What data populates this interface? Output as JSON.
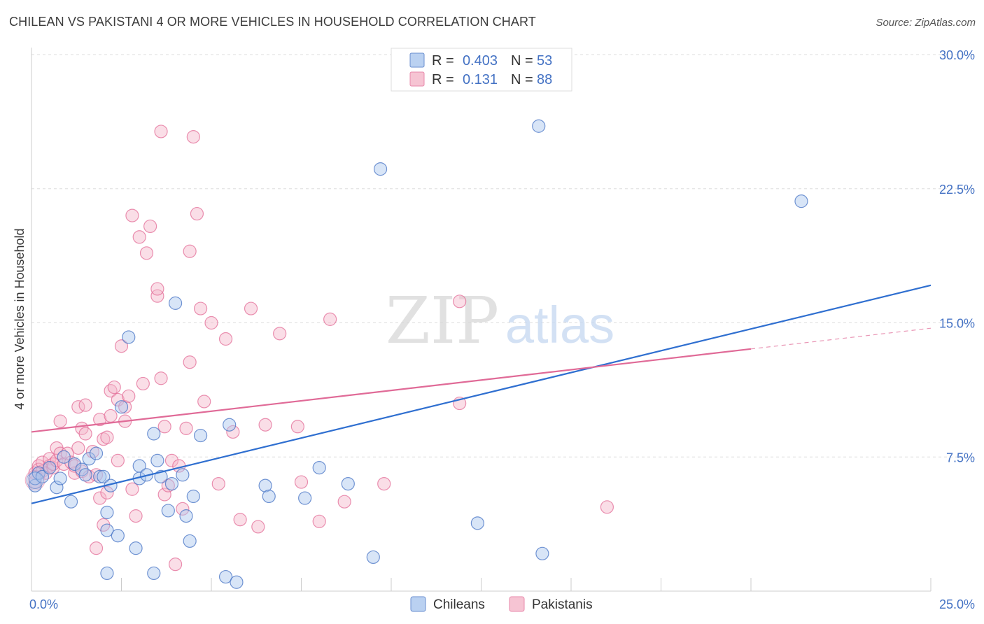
{
  "title": "CHILEAN VS PAKISTANI 4 OR MORE VEHICLES IN HOUSEHOLD CORRELATION CHART",
  "source": "Source: ZipAtlas.com",
  "watermark": {
    "zip": "ZIP",
    "atlas": "atlas"
  },
  "colors": {
    "blue": "#4472c4",
    "blue_fill": "#a9c6ee",
    "blue_line": "#2f6fd0",
    "pink": "#e36c97",
    "pink_fill": "#f4b6c9",
    "pink_line": "#e06a97",
    "grid": "#dddddd",
    "axis_text": "#4472c4"
  },
  "legend": {
    "rows": [
      {
        "r_label": "R =",
        "r_value": "0.403",
        "n_label": "N =",
        "n_value": "53",
        "color": "blue"
      },
      {
        "r_label": "R =",
        "r_value": "0.131",
        "n_label": "N =",
        "n_value": "88",
        "color": "pink"
      }
    ]
  },
  "bottom_legend": [
    {
      "label": "Chileans",
      "color": "blue"
    },
    {
      "label": "Pakistanis",
      "color": "pink"
    }
  ],
  "chart_data": {
    "type": "scatter",
    "title": "CHILEAN VS PAKISTANI 4 OR MORE VEHICLES IN HOUSEHOLD CORRELATION CHART",
    "xlabel": "",
    "ylabel": "4 or more Vehicles in Household",
    "xlim": [
      0,
      25
    ],
    "ylim": [
      0,
      30
    ],
    "x_tick_labels": [
      {
        "value": 0,
        "label": "0.0%"
      },
      {
        "value": 25,
        "label": "25.0%"
      }
    ],
    "y_tick_labels": [
      {
        "value": 7.5,
        "label": "7.5%"
      },
      {
        "value": 15,
        "label": "15.0%"
      },
      {
        "value": 22.5,
        "label": "22.5%"
      },
      {
        "value": 30,
        "label": "30.0%"
      }
    ],
    "x_minor_ticks": [
      2.5,
      5,
      7.5,
      10,
      12.5,
      15,
      17.5,
      20,
      25
    ],
    "grid": true,
    "series": [
      {
        "name": "Chileans",
        "color": "blue",
        "trend": {
          "x": [
            0,
            25
          ],
          "y": [
            4.9,
            17.1
          ],
          "dashed_from": null
        },
        "points": [
          [
            0.1,
            5.9
          ],
          [
            0.1,
            6.3
          ],
          [
            0.2,
            6.6
          ],
          [
            0.3,
            6.4
          ],
          [
            0.5,
            6.9
          ],
          [
            0.7,
            5.8
          ],
          [
            0.8,
            6.3
          ],
          [
            0.9,
            7.5
          ],
          [
            1.1,
            5.0
          ],
          [
            1.2,
            7.1
          ],
          [
            1.4,
            6.8
          ],
          [
            1.5,
            6.5
          ],
          [
            1.6,
            7.4
          ],
          [
            1.8,
            7.7
          ],
          [
            1.9,
            6.4
          ],
          [
            2.0,
            6.4
          ],
          [
            2.1,
            4.4
          ],
          [
            2.1,
            3.4
          ],
          [
            2.2,
            5.9
          ],
          [
            2.4,
            3.1
          ],
          [
            2.5,
            10.3
          ],
          [
            2.7,
            14.2
          ],
          [
            2.9,
            2.4
          ],
          [
            3.0,
            6.3
          ],
          [
            3.0,
            7.0
          ],
          [
            3.2,
            6.5
          ],
          [
            3.4,
            8.8
          ],
          [
            3.5,
            7.3
          ],
          [
            3.6,
            6.4
          ],
          [
            3.8,
            4.5
          ],
          [
            3.9,
            6.0
          ],
          [
            4.2,
            6.5
          ],
          [
            4.3,
            4.2
          ],
          [
            4.4,
            2.8
          ],
          [
            4.5,
            5.3
          ],
          [
            4.7,
            8.7
          ],
          [
            5.4,
            0.8
          ],
          [
            5.5,
            9.3
          ],
          [
            5.7,
            0.5
          ],
          [
            2.1,
            1.0
          ],
          [
            3.4,
            1.0
          ],
          [
            4.0,
            16.1
          ],
          [
            6.5,
            5.9
          ],
          [
            6.6,
            5.3
          ],
          [
            7.6,
            5.2
          ],
          [
            8.0,
            6.9
          ],
          [
            8.8,
            6.0
          ],
          [
            9.5,
            1.9
          ],
          [
            9.7,
            23.6
          ],
          [
            12.4,
            3.8
          ],
          [
            14.1,
            26.0
          ],
          [
            14.2,
            2.1
          ],
          [
            21.4,
            21.8
          ]
        ]
      },
      {
        "name": "Pakistanis",
        "color": "pink",
        "trend": {
          "x": [
            0,
            25
          ],
          "y": [
            8.9,
            14.7
          ],
          "dashed_from": 20
        }
      }
    ],
    "pakistani_points": [
      [
        0.1,
        6.1
      ],
      [
        0.1,
        6.6
      ],
      [
        0.2,
        7.0
      ],
      [
        0.2,
        6.8
      ],
      [
        0.3,
        6.7
      ],
      [
        0.3,
        7.2
      ],
      [
        0.4,
        6.6
      ],
      [
        0.5,
        7.0
      ],
      [
        0.5,
        7.4
      ],
      [
        0.6,
        6.9
      ],
      [
        0.6,
        7.1
      ],
      [
        0.7,
        8.0
      ],
      [
        0.7,
        7.3
      ],
      [
        0.8,
        7.7
      ],
      [
        0.8,
        9.5
      ],
      [
        0.9,
        7.1
      ],
      [
        1.0,
        7.7
      ],
      [
        1.1,
        7.2
      ],
      [
        1.2,
        6.6
      ],
      [
        1.2,
        7.0
      ],
      [
        1.3,
        10.3
      ],
      [
        1.3,
        8.0
      ],
      [
        1.4,
        9.1
      ],
      [
        1.4,
        6.7
      ],
      [
        1.5,
        8.8
      ],
      [
        1.5,
        10.4
      ],
      [
        1.6,
        6.4
      ],
      [
        1.7,
        7.8
      ],
      [
        1.8,
        2.4
      ],
      [
        1.8,
        6.5
      ],
      [
        1.9,
        5.2
      ],
      [
        1.9,
        9.6
      ],
      [
        2.0,
        3.7
      ],
      [
        2.0,
        8.5
      ],
      [
        2.1,
        5.5
      ],
      [
        2.1,
        8.6
      ],
      [
        2.2,
        11.2
      ],
      [
        2.2,
        9.8
      ],
      [
        2.3,
        11.4
      ],
      [
        2.4,
        7.3
      ],
      [
        2.4,
        10.7
      ],
      [
        2.5,
        13.7
      ],
      [
        2.6,
        9.5
      ],
      [
        2.6,
        10.3
      ],
      [
        2.7,
        10.9
      ],
      [
        2.8,
        21.0
      ],
      [
        2.8,
        5.7
      ],
      [
        2.9,
        4.2
      ],
      [
        3.0,
        19.8
      ],
      [
        3.1,
        11.6
      ],
      [
        3.2,
        18.9
      ],
      [
        3.3,
        20.4
      ],
      [
        3.5,
        16.5
      ],
      [
        3.5,
        16.9
      ],
      [
        3.6,
        25.7
      ],
      [
        3.6,
        11.9
      ],
      [
        3.7,
        9.2
      ],
      [
        3.7,
        5.4
      ],
      [
        3.8,
        5.9
      ],
      [
        3.9,
        7.3
      ],
      [
        4.0,
        1.5
      ],
      [
        4.1,
        7.0
      ],
      [
        4.2,
        4.6
      ],
      [
        4.3,
        9.1
      ],
      [
        4.4,
        19.0
      ],
      [
        4.4,
        12.8
      ],
      [
        4.5,
        25.4
      ],
      [
        4.6,
        21.1
      ],
      [
        4.7,
        15.8
      ],
      [
        4.8,
        10.6
      ],
      [
        5.0,
        15.0
      ],
      [
        5.2,
        6.0
      ],
      [
        5.4,
        14.1
      ],
      [
        5.6,
        8.9
      ],
      [
        5.8,
        4.0
      ],
      [
        6.1,
        15.8
      ],
      [
        6.3,
        3.6
      ],
      [
        6.5,
        9.3
      ],
      [
        6.9,
        14.4
      ],
      [
        7.4,
        9.2
      ],
      [
        7.5,
        6.1
      ],
      [
        8.0,
        3.9
      ],
      [
        8.3,
        15.2
      ],
      [
        8.7,
        5.0
      ],
      [
        9.8,
        6.0
      ],
      [
        11.9,
        16.2
      ],
      [
        11.9,
        10.5
      ],
      [
        16.0,
        4.7
      ]
    ]
  }
}
